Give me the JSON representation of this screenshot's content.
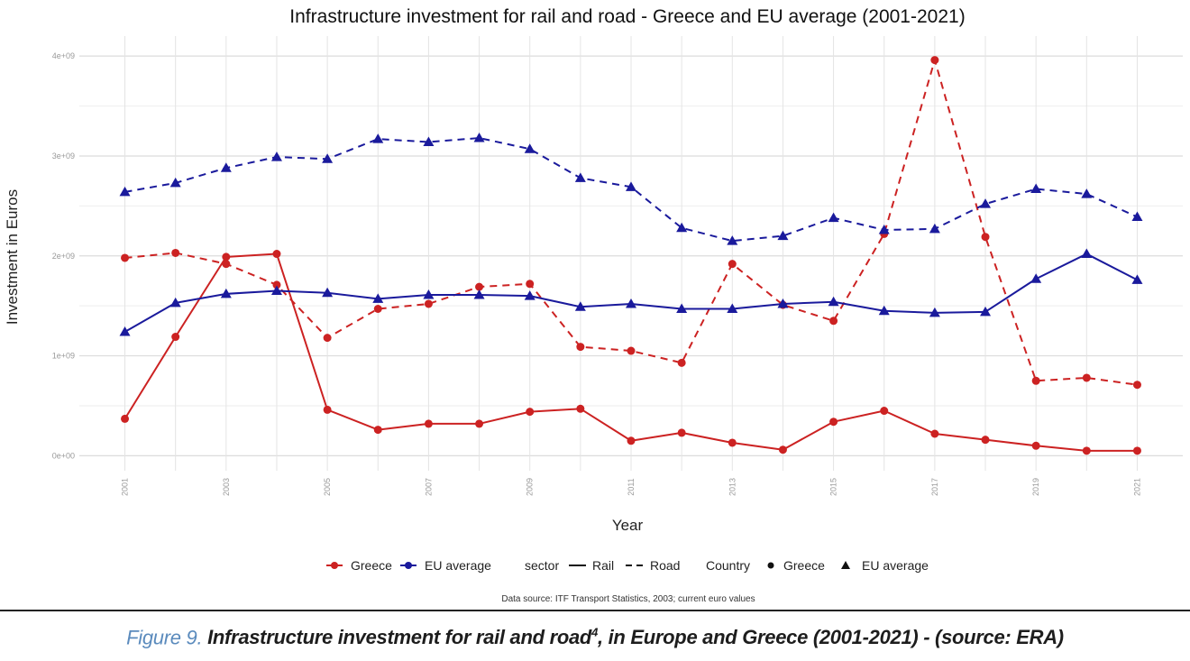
{
  "chart_data": {
    "type": "line",
    "title": "Infrastructure investment for rail and road - Greece and EU average (2001-2021)",
    "xlabel": "Year",
    "ylabel": "Investment in Euros",
    "x": [
      2001,
      2002,
      2003,
      2004,
      2005,
      2006,
      2007,
      2008,
      2009,
      2010,
      2011,
      2012,
      2013,
      2014,
      2015,
      2016,
      2017,
      2018,
      2019,
      2020,
      2021
    ],
    "x_tick_labels": [
      "2001",
      "2003",
      "2005",
      "2007",
      "2009",
      "2011",
      "2013",
      "2015",
      "2017",
      "2019",
      "2021"
    ],
    "x_ticks": [
      2001,
      2003,
      2005,
      2007,
      2009,
      2011,
      2013,
      2015,
      2017,
      2019,
      2021
    ],
    "y_ticks": [
      0,
      1000000000,
      2000000000,
      3000000000,
      4000000000
    ],
    "y_tick_labels": [
      "0e+00",
      "1e+09",
      "2e+09",
      "3e+09",
      "4e+09"
    ],
    "ylim": [
      -150000000,
      4200000000
    ],
    "xlim": [
      2000.1,
      2021.9
    ],
    "grid": true,
    "legend_position": "bottom",
    "series": [
      {
        "name": "Greece - Rail",
        "country": "Greece",
        "sector": "Rail",
        "color": "#cc2222",
        "dash": "solid",
        "marker": "circle",
        "values": [
          370000000,
          1190000000,
          1990000000,
          2020000000,
          460000000,
          260000000,
          320000000,
          320000000,
          440000000,
          470000000,
          150000000,
          230000000,
          130000000,
          60000000,
          340000000,
          450000000,
          220000000,
          160000000,
          100000000,
          50000000,
          50000000
        ]
      },
      {
        "name": "Greece - Road",
        "country": "Greece",
        "sector": "Road",
        "color": "#cc2222",
        "dash": "dashed",
        "marker": "circle",
        "values": [
          1980000000,
          2030000000,
          1920000000,
          1710000000,
          1180000000,
          1470000000,
          1520000000,
          1690000000,
          1720000000,
          1090000000,
          1050000000,
          930000000,
          1920000000,
          1510000000,
          1350000000,
          2220000000,
          3960000000,
          2190000000,
          750000000,
          780000000,
          710000000
        ]
      },
      {
        "name": "EU average - Rail",
        "country": "EU average",
        "sector": "Rail",
        "color": "#1a1a9c",
        "dash": "solid",
        "marker": "triangle",
        "values": [
          1240000000,
          1530000000,
          1620000000,
          1650000000,
          1630000000,
          1570000000,
          1610000000,
          1610000000,
          1600000000,
          1490000000,
          1520000000,
          1470000000,
          1470000000,
          1520000000,
          1540000000,
          1450000000,
          1430000000,
          1440000000,
          1770000000,
          2020000000,
          1760000000
        ]
      },
      {
        "name": "EU average - Road",
        "country": "EU average",
        "sector": "Road",
        "color": "#1a1a9c",
        "dash": "dashed",
        "marker": "triangle",
        "values": [
          2640000000,
          2730000000,
          2880000000,
          2990000000,
          2970000000,
          3170000000,
          3140000000,
          3180000000,
          3070000000,
          2780000000,
          2690000000,
          2280000000,
          2150000000,
          2200000000,
          2380000000,
          2260000000,
          2270000000,
          2520000000,
          2670000000,
          2620000000,
          2390000000
        ]
      }
    ],
    "legend": {
      "color_items": [
        {
          "label": "Greece",
          "color": "#cc2222"
        },
        {
          "label": "EU average",
          "color": "#1a1a9c"
        }
      ],
      "sector_title": "sector",
      "sector_items": [
        {
          "label": "Rail",
          "dash": "solid"
        },
        {
          "label": "Road",
          "dash": "dashed"
        }
      ],
      "country_title": "Country",
      "country_items": [
        {
          "label": "Greece",
          "marker": "circle"
        },
        {
          "label": "EU average",
          "marker": "triangle"
        }
      ]
    },
    "source_note": "Data source: ITF Transport Statistics, 2003; current euro values"
  },
  "caption": {
    "figure_label": "Figure 9.",
    "text_before_sup": " Infrastructure investment for rail and road",
    "superscript": "4",
    "text_after_sup": ", in Europe and Greece (2001-2021) - (source: ERA)"
  }
}
